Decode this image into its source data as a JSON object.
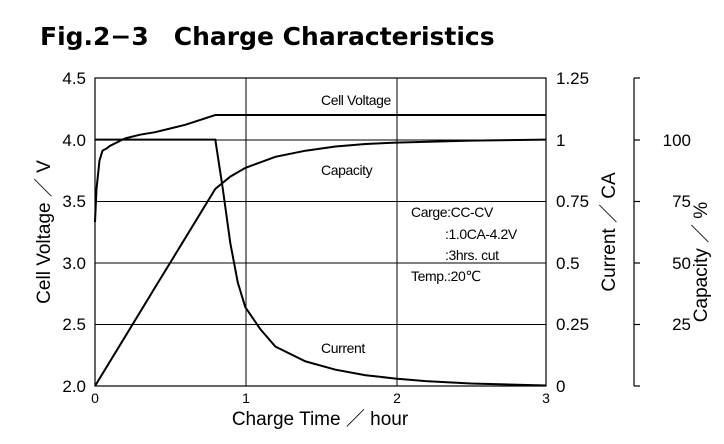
{
  "chart_data": {
    "type": "line",
    "title": "Fig.2−3　Charge Characteristics",
    "xlabel": "Charge Time ／ hour",
    "ylabel_left": "Cell Voltage ／ V",
    "ylabel_right1": "Current ／ CA",
    "ylabel_right2": "Capacity ／ %",
    "xlim": [
      0,
      3
    ],
    "ylim_left": [
      2.0,
      4.5
    ],
    "ylim_right1": [
      0,
      1.25
    ],
    "ylim_right2": [
      0,
      125
    ],
    "x_ticks": [
      "0",
      "1",
      "2",
      "3"
    ],
    "y_left_ticks": [
      "2.0",
      "2.5",
      "3.0",
      "3.5",
      "4.0",
      "4.5"
    ],
    "y_right1_ticks": [
      "0",
      "0.25",
      "0.5",
      "0.75",
      "1",
      "1.25"
    ],
    "y_right2_ticks": [
      "25",
      "50",
      "75",
      "100"
    ],
    "grid": true,
    "series": [
      {
        "name": "Cell Voltage",
        "axis": "left",
        "x": [
          0,
          0.01,
          0.03,
          0.05,
          0.08,
          0.1,
          0.15,
          0.2,
          0.3,
          0.4,
          0.5,
          0.6,
          0.7,
          0.8,
          1.0,
          2.0,
          3.0
        ],
        "y": [
          3.33,
          3.6,
          3.83,
          3.91,
          3.93,
          3.95,
          3.98,
          4.01,
          4.04,
          4.06,
          4.09,
          4.12,
          4.16,
          4.2,
          4.2,
          4.2,
          4.2
        ]
      },
      {
        "name": "Current",
        "axis": "right1",
        "x": [
          0,
          0.8,
          0.85,
          0.9,
          0.95,
          1.0,
          1.1,
          1.2,
          1.4,
          1.6,
          1.8,
          2.0,
          2.2,
          2.5,
          3.0
        ],
        "y": [
          1.0,
          1.0,
          0.8,
          0.58,
          0.42,
          0.32,
          0.23,
          0.16,
          0.1,
          0.066,
          0.044,
          0.03,
          0.02,
          0.01,
          0.002
        ]
      },
      {
        "name": "Capacity",
        "axis": "right2",
        "x": [
          0,
          0.2,
          0.4,
          0.6,
          0.8,
          0.9,
          1.0,
          1.2,
          1.4,
          1.6,
          1.8,
          2.0,
          2.5,
          3.0
        ],
        "y": [
          0,
          20,
          40,
          60,
          80,
          85,
          88.5,
          93,
          95.5,
          97.2,
          98.2,
          98.8,
          99.6,
          100
        ]
      }
    ],
    "annotations": {
      "voltage_label": "Cell Voltage",
      "capacity_label": "Capacity",
      "current_label": "Current",
      "cond1": "Carge:CC-CV",
      "cond2": ":1.0CA-4.2V",
      "cond3": ":3hrs. cut",
      "temp": "Temp.:20℃"
    }
  }
}
